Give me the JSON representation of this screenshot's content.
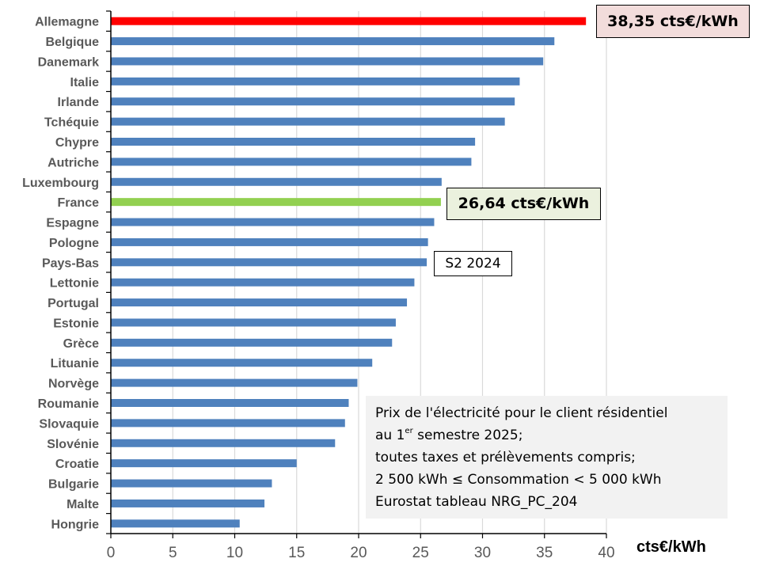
{
  "chart_data": {
    "type": "bar",
    "orientation": "horizontal",
    "title": "",
    "xlabel": "cts€/kWh",
    "ylabel": "",
    "xlim": [
      0,
      40
    ],
    "xticks": [
      0,
      5,
      10,
      15,
      20,
      25,
      30,
      35,
      40
    ],
    "grid": true,
    "categories": [
      "Allemagne",
      "Belgique",
      "Danemark",
      "Italie",
      "Irlande",
      "Tchéquie",
      "Chypre",
      "Autriche",
      "Luxembourg",
      "France",
      "Espagne",
      "Pologne",
      "Pays-Bas",
      "Lettonie",
      "Portugal",
      "Estonie",
      "Grèce",
      "Lituanie",
      "Norvège",
      "Roumanie",
      "Slovaquie",
      "Slovénie",
      "Croatie",
      "Bulgarie",
      "Malte",
      "Hongrie"
    ],
    "values": [
      38.35,
      35.8,
      34.9,
      33.0,
      32.6,
      31.8,
      29.4,
      29.1,
      26.7,
      26.64,
      26.1,
      25.6,
      25.5,
      24.5,
      23.9,
      23.0,
      22.7,
      21.1,
      19.9,
      19.2,
      18.9,
      18.1,
      15.0,
      13.0,
      12.4,
      10.4
    ],
    "colors": {
      "default": "#4f81bd",
      "Allemagne": "#ff0000",
      "France": "#92d050"
    },
    "annotations": [
      {
        "target": "Allemagne",
        "text": "38,35 cts€/kWh",
        "background": "#f2dcdb"
      },
      {
        "target": "France",
        "text": "26,64 cts€/kWh",
        "background": "#ebf1de"
      },
      {
        "target": "Pays-Bas",
        "text": "S2 2024",
        "background": "#ffffff"
      }
    ]
  },
  "note": {
    "line1": "Prix de l'électricité pour le client résidentiel",
    "line2_pre": "au 1",
    "line2_sup": "er",
    "line2_post": " semestre 2025;",
    "line3": "toutes taxes et prélèvements compris;",
    "line4": "2 500 kWh ≤ Consommation < 5 000 kWh",
    "line5": "Eurostat tableau NRG_PC_204"
  }
}
